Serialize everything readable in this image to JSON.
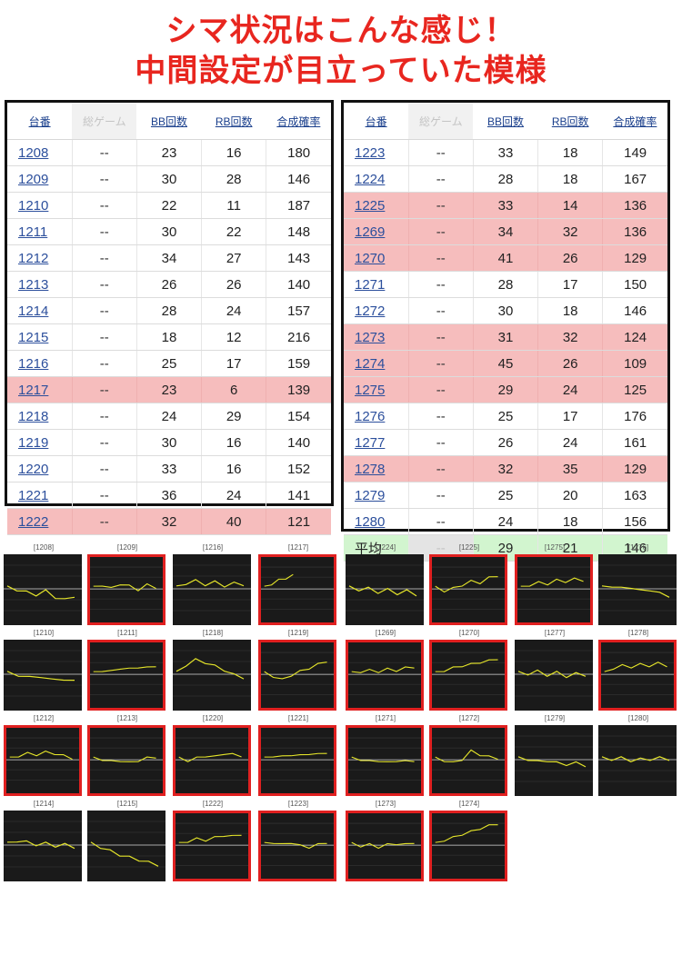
{
  "headline": {
    "line1": "シマ状況はこんな感じ！",
    "line2": "中間設定が目立っていた模様"
  },
  "table_headers": [
    "台番",
    "総ゲーム",
    "BB回数",
    "RB回数",
    "合成確率"
  ],
  "left_table": [
    {
      "no": "1208",
      "games": "--",
      "bb": "23",
      "rb": "16",
      "prob": "180",
      "hl": false
    },
    {
      "no": "1209",
      "games": "--",
      "bb": "30",
      "rb": "28",
      "prob": "146",
      "hl": false
    },
    {
      "no": "1210",
      "games": "--",
      "bb": "22",
      "rb": "11",
      "prob": "187",
      "hl": false
    },
    {
      "no": "1211",
      "games": "--",
      "bb": "30",
      "rb": "22",
      "prob": "148",
      "hl": false
    },
    {
      "no": "1212",
      "games": "--",
      "bb": "34",
      "rb": "27",
      "prob": "143",
      "hl": false
    },
    {
      "no": "1213",
      "games": "--",
      "bb": "26",
      "rb": "26",
      "prob": "140",
      "hl": false
    },
    {
      "no": "1214",
      "games": "--",
      "bb": "28",
      "rb": "24",
      "prob": "157",
      "hl": false
    },
    {
      "no": "1215",
      "games": "--",
      "bb": "18",
      "rb": "12",
      "prob": "216",
      "hl": false
    },
    {
      "no": "1216",
      "games": "--",
      "bb": "25",
      "rb": "17",
      "prob": "159",
      "hl": false
    },
    {
      "no": "1217",
      "games": "--",
      "bb": "23",
      "rb": "6",
      "prob": "139",
      "hl": true
    },
    {
      "no": "1218",
      "games": "--",
      "bb": "24",
      "rb": "29",
      "prob": "154",
      "hl": false
    },
    {
      "no": "1219",
      "games": "--",
      "bb": "30",
      "rb": "16",
      "prob": "140",
      "hl": false
    },
    {
      "no": "1220",
      "games": "--",
      "bb": "33",
      "rb": "16",
      "prob": "152",
      "hl": false
    },
    {
      "no": "1221",
      "games": "--",
      "bb": "36",
      "rb": "24",
      "prob": "141",
      "hl": false
    },
    {
      "no": "1222",
      "games": "--",
      "bb": "32",
      "rb": "40",
      "prob": "121",
      "hl": true
    }
  ],
  "right_table": [
    {
      "no": "1223",
      "games": "--",
      "bb": "33",
      "rb": "18",
      "prob": "149",
      "hl": false
    },
    {
      "no": "1224",
      "games": "--",
      "bb": "28",
      "rb": "18",
      "prob": "167",
      "hl": false
    },
    {
      "no": "1225",
      "games": "--",
      "bb": "33",
      "rb": "14",
      "prob": "136",
      "hl": true
    },
    {
      "no": "1269",
      "games": "--",
      "bb": "34",
      "rb": "32",
      "prob": "136",
      "hl": true
    },
    {
      "no": "1270",
      "games": "--",
      "bb": "41",
      "rb": "26",
      "prob": "129",
      "hl": true
    },
    {
      "no": "1271",
      "games": "--",
      "bb": "28",
      "rb": "17",
      "prob": "150",
      "hl": false
    },
    {
      "no": "1272",
      "games": "--",
      "bb": "30",
      "rb": "18",
      "prob": "146",
      "hl": false
    },
    {
      "no": "1273",
      "games": "--",
      "bb": "31",
      "rb": "32",
      "prob": "124",
      "hl": true
    },
    {
      "no": "1274",
      "games": "--",
      "bb": "45",
      "rb": "26",
      "prob": "109",
      "hl": true
    },
    {
      "no": "1275",
      "games": "--",
      "bb": "29",
      "rb": "24",
      "prob": "125",
      "hl": true
    },
    {
      "no": "1276",
      "games": "--",
      "bb": "25",
      "rb": "17",
      "prob": "176",
      "hl": false
    },
    {
      "no": "1277",
      "games": "--",
      "bb": "26",
      "rb": "24",
      "prob": "161",
      "hl": false
    },
    {
      "no": "1278",
      "games": "--",
      "bb": "32",
      "rb": "35",
      "prob": "129",
      "hl": true
    },
    {
      "no": "1279",
      "games": "--",
      "bb": "25",
      "rb": "20",
      "prob": "163",
      "hl": false
    },
    {
      "no": "1280",
      "games": "--",
      "bb": "24",
      "rb": "18",
      "prob": "156",
      "hl": false
    }
  ],
  "average_row": {
    "label": "平均",
    "games": "--",
    "bb": "29",
    "rb": "21",
    "prob": "146"
  },
  "graph_trend_color": "#e6e62a",
  "graphs": [
    {
      "label": "[1208]",
      "red": false,
      "trend": [
        0,
        -2,
        -4,
        -6,
        -3,
        -8,
        -10,
        -7
      ]
    },
    {
      "label": "[1209]",
      "red": true,
      "trend": [
        0,
        2,
        -1,
        3,
        1,
        -2,
        2,
        0
      ]
    },
    {
      "label": "[1216]",
      "red": false,
      "trend": [
        0,
        3,
        5,
        2,
        4,
        1,
        3,
        2
      ]
    },
    {
      "label": "[1217]",
      "red": true,
      "trend": [
        0,
        3,
        6,
        8,
        10
      ]
    },
    {
      "label": "[1224]",
      "red": false,
      "trend": [
        0,
        -2,
        -1,
        -4,
        -2,
        -5,
        -3,
        -6
      ]
    },
    {
      "label": "[1225]",
      "red": true,
      "trend": [
        0,
        -3,
        -1,
        2,
        5,
        4,
        8,
        10
      ]
    },
    {
      "label": "[1275]",
      "red": true,
      "trend": [
        0,
        2,
        4,
        3,
        6,
        5,
        7,
        6
      ]
    },
    {
      "label": "[1276]",
      "red": false,
      "trend": [
        0,
        1,
        -1,
        0,
        -3,
        -2,
        -5,
        -7
      ]
    },
    {
      "label": "[1210]",
      "red": false,
      "trend": [
        0,
        -2,
        -4,
        -3,
        -6,
        -5,
        -7
      ]
    },
    {
      "label": "[1211]",
      "red": true,
      "trend": [
        0,
        2,
        1,
        4,
        3,
        5,
        4,
        6
      ]
    },
    {
      "label": "[1218]",
      "red": false,
      "trend": [
        0,
        6,
        10,
        8,
        5,
        2,
        -2,
        -4
      ]
    },
    {
      "label": "[1219]",
      "red": true,
      "trend": [
        0,
        -3,
        -6,
        -2,
        1,
        4,
        7,
        10
      ]
    },
    {
      "label": "[1269]",
      "red": true,
      "trend": [
        0,
        1,
        2,
        1,
        3,
        2,
        4,
        5
      ]
    },
    {
      "label": "[1270]",
      "red": true,
      "trend": [
        0,
        2,
        4,
        6,
        7,
        9,
        10,
        12
      ]
    },
    {
      "label": "[1277]",
      "red": false,
      "trend": [
        0,
        -1,
        1,
        -2,
        0,
        -3,
        -1,
        -2
      ]
    },
    {
      "label": "[1278]",
      "red": true,
      "trend": [
        0,
        4,
        6,
        5,
        7,
        6,
        8,
        6
      ]
    },
    {
      "label": "[1212]",
      "red": true,
      "trend": [
        0,
        2,
        4,
        3,
        5,
        4,
        2,
        0
      ]
    },
    {
      "label": "[1213]",
      "red": true,
      "trend": [
        0,
        -1,
        -3,
        -2,
        -4,
        -2,
        0,
        1
      ]
    },
    {
      "label": "[1220]",
      "red": true,
      "trend": [
        0,
        -2,
        0,
        2,
        1,
        4,
        3,
        2
      ]
    },
    {
      "label": "[1221]",
      "red": true,
      "trend": [
        0,
        2,
        1,
        3,
        2,
        4,
        3,
        5
      ]
    },
    {
      "label": "[1271]",
      "red": true,
      "trend": [
        0,
        -1,
        -3,
        -2,
        -4,
        -2,
        -3,
        -2
      ]
    },
    {
      "label": "[1272]",
      "red": true,
      "trend": [
        0,
        -2,
        -4,
        -1,
        6,
        3,
        1,
        0
      ]
    },
    {
      "label": "[1279]",
      "red": false,
      "trend": [
        0,
        -1,
        -3,
        -2,
        -4,
        -5,
        -4,
        -6
      ]
    },
    {
      "label": "[1280]",
      "red": false,
      "trend": [
        0,
        -1,
        0,
        -2,
        -1,
        -1,
        0,
        -1
      ]
    },
    {
      "label": "[1214]",
      "red": false,
      "trend": [
        0,
        2,
        1,
        -1,
        0,
        -2,
        -1,
        -3
      ]
    },
    {
      "label": "[1215]",
      "red": false,
      "trend": [
        0,
        -3,
        -6,
        -9,
        -11,
        -13,
        -15,
        -17
      ]
    },
    {
      "label": "[1222]",
      "red": true,
      "trend": [
        0,
        2,
        4,
        3,
        5,
        7,
        6,
        8
      ]
    },
    {
      "label": "[1223]",
      "red": true,
      "trend": [
        0,
        1,
        -1,
        1,
        -2,
        -3,
        -1,
        1
      ]
    },
    {
      "label": "[1273]",
      "red": true,
      "trend": [
        0,
        -2,
        -1,
        -3,
        -1,
        0,
        -1,
        1
      ]
    },
    {
      "label": "[1274]",
      "red": true,
      "trend": [
        0,
        3,
        5,
        8,
        10,
        13,
        15,
        17
      ]
    }
  ]
}
